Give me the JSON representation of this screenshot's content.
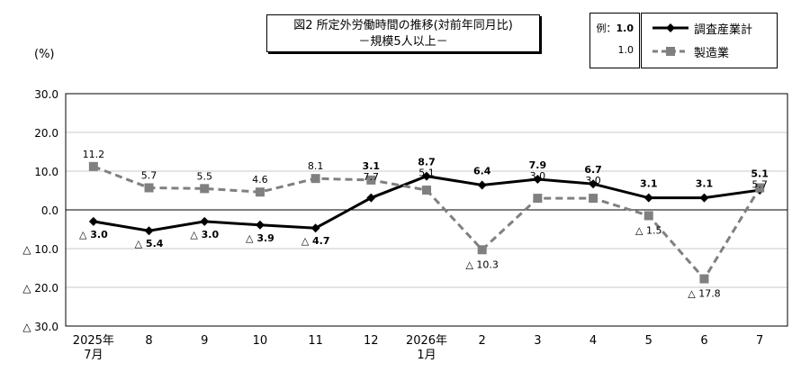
{
  "title": {
    "line1": "図2 所定外労働時間の推移(対前年同月比)",
    "line2": "－規模5人以上－"
  },
  "legend_example": {
    "label": "例：",
    "value_bold": "1.0",
    "value_plain": "1.0"
  },
  "unit_label": "(%)",
  "chart_data": {
    "type": "line",
    "title": "図2 所定外労働時間の推移(対前年同月比)",
    "subtitle": "－規模5人以上－",
    "ylabel": "(%)",
    "ylim": [
      -30,
      30
    ],
    "yticks": [
      30,
      20,
      10,
      0,
      -10,
      -20,
      -30
    ],
    "ytick_labels": [
      "30.0",
      "20.0",
      "10.0",
      "0.0",
      "△ 10.0",
      "△ 20.0",
      "△ 30.0"
    ],
    "categories": [
      "2025年7月",
      "8",
      "9",
      "10",
      "11",
      "12",
      "2026年1月",
      "2",
      "3",
      "4",
      "5",
      "6",
      "7"
    ],
    "category_labels": [
      [
        "2025年",
        "7月"
      ],
      [
        "8"
      ],
      [
        "9"
      ],
      [
        "10"
      ],
      [
        "11"
      ],
      [
        "12"
      ],
      [
        "2026年",
        "1月"
      ],
      [
        "2"
      ],
      [
        "3"
      ],
      [
        "4"
      ],
      [
        "5"
      ],
      [
        "6"
      ],
      [
        "7"
      ]
    ],
    "grid": true,
    "legend": "top-right",
    "series": [
      {
        "name": "調査産業計",
        "style": "solid",
        "marker": "diamond",
        "color": "#000000",
        "values": [
          -3.0,
          -5.4,
          -3.0,
          -3.9,
          -4.7,
          3.1,
          8.7,
          6.4,
          7.9,
          6.7,
          3.1,
          3.1,
          5.1
        ],
        "labels": [
          "△ 3.0",
          "△ 5.4",
          "△ 3.0",
          "△ 3.9",
          "△ 4.7",
          "3.1",
          "8.7",
          "6.4",
          "7.9",
          "6.7",
          "3.1",
          "3.1",
          "5.1"
        ]
      },
      {
        "name": "製造業",
        "style": "dashed",
        "marker": "square",
        "color": "#808080",
        "values": [
          11.2,
          5.7,
          5.5,
          4.6,
          8.1,
          7.7,
          5.1,
          -10.3,
          3.0,
          3.0,
          -1.5,
          -17.8,
          5.7
        ],
        "labels": [
          "11.2",
          "5.7",
          "5.5",
          "4.6",
          "8.1",
          "7.7",
          "5.1",
          "△ 10.3",
          "3.0",
          "3.0",
          "△ 1.5",
          "△ 17.8",
          "5.7"
        ]
      }
    ]
  }
}
